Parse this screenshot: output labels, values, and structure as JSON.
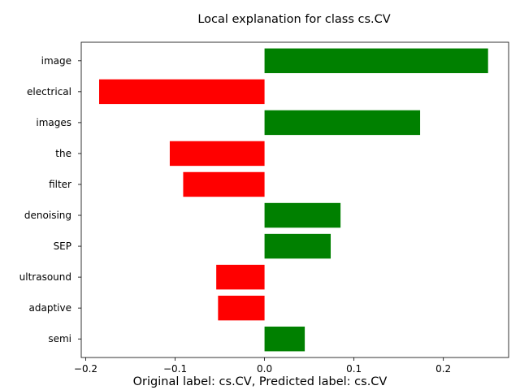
{
  "chart_data": {
    "type": "bar",
    "orientation": "horizontal",
    "title": "Local explanation for class cs.CV",
    "caption": "Original label: cs.CV, Predicted label: cs.CV",
    "categories": [
      "image",
      "electrical",
      "images",
      "the",
      "filter",
      "denoising",
      "SEP",
      "ultrasound",
      "adaptive",
      "semi"
    ],
    "values": [
      0.25,
      -0.185,
      0.174,
      -0.106,
      -0.091,
      0.085,
      0.074,
      -0.054,
      -0.052,
      0.045
    ],
    "xlim": [
      -0.205,
      0.273
    ],
    "xticks": [
      -0.2,
      -0.1,
      0.0,
      0.1,
      0.2
    ],
    "xtick_labels": [
      "−0.2",
      "−0.1",
      "0.0",
      "0.1",
      "0.2"
    ],
    "xlabel": "",
    "ylabel": "",
    "grid": false,
    "colors": {
      "positive": "#008000",
      "negative": "#ff0000"
    }
  }
}
